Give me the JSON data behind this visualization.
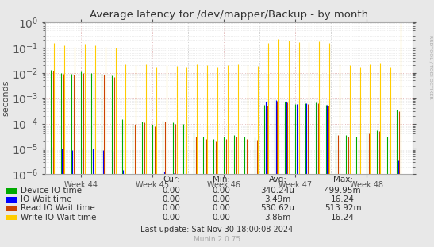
{
  "title": "Average latency for /dev/mapper/Backup - by month",
  "ylabel": "seconds",
  "background_color": "#e8e8e8",
  "plot_bg_color": "#ffffff",
  "ylim_min": 1e-06,
  "ylim_max": 1.0,
  "week_labels": [
    "Week 44",
    "Week 45",
    "Week 46",
    "Week 47",
    "Week 48"
  ],
  "rrdtool_label": "RRDTOOL / TOBI OETIKER",
  "munin_label": "Munin 2.0.75",
  "legend": [
    {
      "label": "Device IO time",
      "color": "#00aa00"
    },
    {
      "label": "IO Wait time",
      "color": "#0000ff"
    },
    {
      "label": "Read IO Wait time",
      "color": "#cc4400"
    },
    {
      "label": "Write IO Wait time",
      "color": "#ffcc00"
    }
  ],
  "stats_headers": [
    "Cur:",
    "Min:",
    "Avg:",
    "Max:"
  ],
  "stats_rows": [
    {
      "label": "Device IO time",
      "cur": "0.00",
      "min": "0.00",
      "avg": "340.24u",
      "max": "499.95m"
    },
    {
      "label": "IO Wait time",
      "cur": "0.00",
      "min": "0.00",
      "avg": "3.49m",
      "max": "16.24"
    },
    {
      "label": "Read IO Wait time",
      "cur": "0.00",
      "min": "0.00",
      "avg": "530.62u",
      "max": "513.92m"
    },
    {
      "label": "Write IO Wait time",
      "cur": "0.00",
      "min": "0.00",
      "avg": "3.86m",
      "max": "16.24"
    }
  ],
  "last_update": "Last update: Sat Nov 30 18:00:08 2024",
  "n_groups": 35,
  "week_group_boundaries": [
    0,
    7,
    14,
    21,
    28,
    35
  ],
  "device_io": [
    0.013,
    0.01,
    0.009,
    0.011,
    0.01,
    0.009,
    0.008,
    0.00015,
    0.0001,
    0.00012,
    9e-05,
    0.00013,
    0.00011,
    0.0001,
    4e-05,
    3e-05,
    2.5e-05,
    3e-05,
    3.5e-05,
    3e-05,
    2.8e-05,
    0.00055,
    0.0009,
    0.00075,
    0.0006,
    0.00065,
    0.0007,
    0.00055,
    4e-05,
    3.5e-05,
    3e-05,
    4.5e-05,
    5.5e-05,
    3e-05,
    0.00035
  ],
  "io_wait": [
    1.2e-05,
    1e-05,
    9e-06,
    1.1e-05,
    1e-05,
    9e-06,
    8e-06,
    1.5e-06,
    1e-06,
    1.2e-06,
    9e-07,
    1.3e-06,
    1.1e-06,
    1e-06,
    4e-07,
    3e-07,
    2.5e-07,
    3e-07,
    3.5e-07,
    3e-07,
    2.8e-07,
    0.00072,
    0.00085,
    0.00075,
    0.0006,
    0.00065,
    0.0007,
    0.00055,
    4e-07,
    3.5e-07,
    3e-07,
    4.5e-07,
    5.5e-07,
    3e-07,
    3.5e-06
  ],
  "read_io_wait": [
    0.012,
    0.009,
    0.0085,
    0.01,
    0.009,
    0.0085,
    0.007,
    0.00014,
    9e-05,
    0.00011,
    8e-05,
    0.00012,
    0.0001,
    9e-05,
    3e-05,
    2.5e-05,
    2e-05,
    2.5e-05,
    3e-05,
    2.5e-05,
    2.2e-05,
    0.0005,
    0.0008,
    0.0007,
    0.00055,
    0.0006,
    0.00065,
    0.0005,
    3.5e-05,
    3e-05,
    2.5e-05,
    4e-05,
    5e-05,
    2.5e-05,
    0.0003
  ],
  "write_io_wait": [
    0.15,
    0.12,
    0.11,
    0.13,
    0.12,
    0.11,
    0.1,
    0.022,
    0.02,
    0.021,
    0.018,
    0.02,
    0.019,
    0.018,
    0.022,
    0.02,
    0.018,
    0.02,
    0.022,
    0.02,
    0.019,
    0.15,
    0.22,
    0.19,
    0.16,
    0.17,
    0.18,
    0.15,
    0.022,
    0.02,
    0.018,
    0.022,
    0.025,
    0.018,
    0.9
  ]
}
